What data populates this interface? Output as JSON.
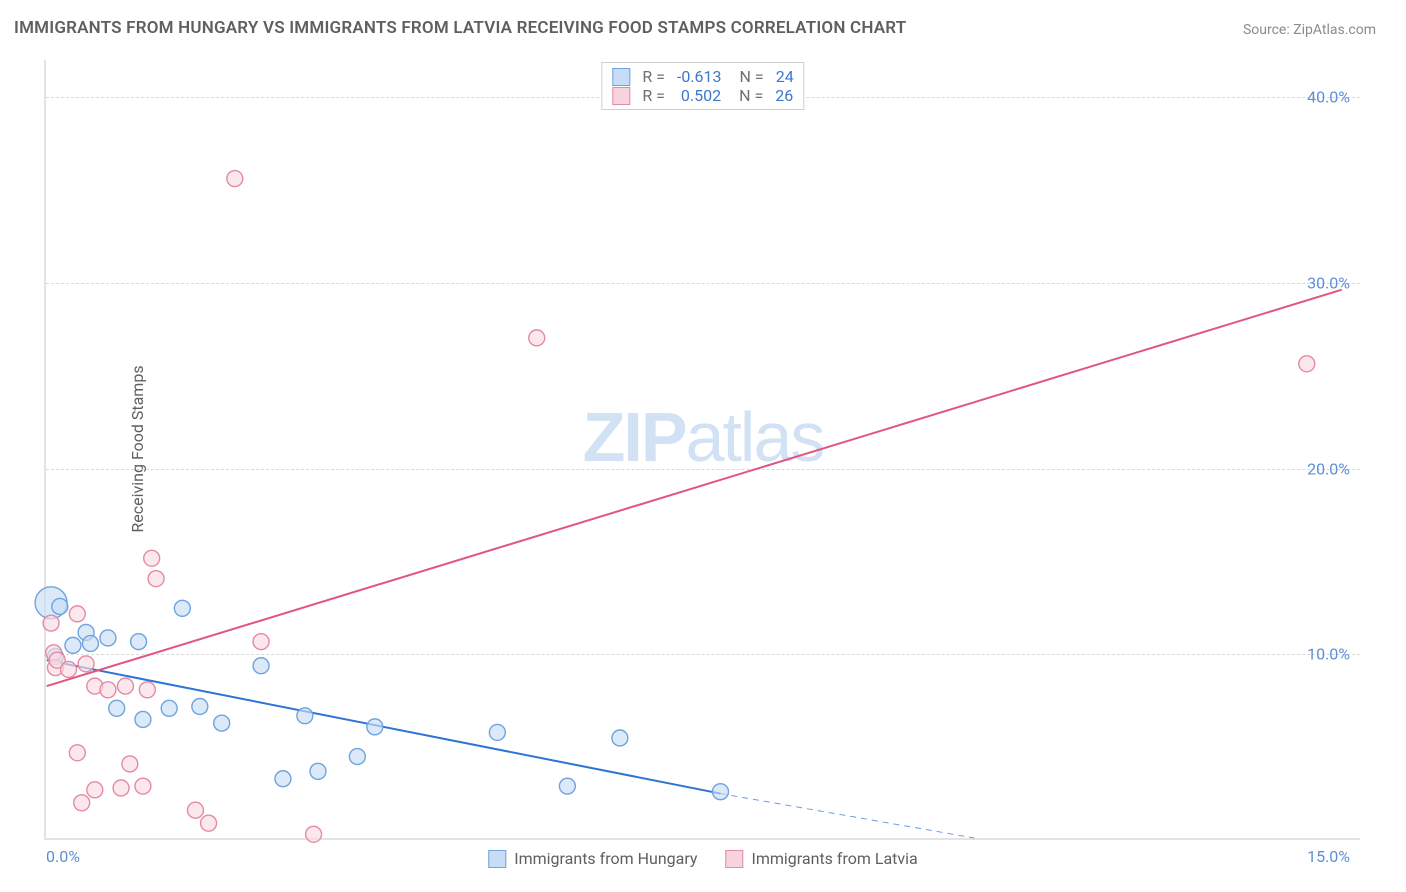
{
  "title": "IMMIGRANTS FROM HUNGARY VS IMMIGRANTS FROM LATVIA RECEIVING FOOD STAMPS CORRELATION CHART",
  "source": "Source: ZipAtlas.com",
  "ylabel": "Receiving Food Stamps",
  "watermark": {
    "zip": "ZIP",
    "atlas": "atlas"
  },
  "chart": {
    "type": "scatter-with-regression",
    "background_color": "#ffffff",
    "grid_color": "#d9d9d9",
    "xlim": [
      0,
      15
    ],
    "ylim": [
      0,
      42
    ],
    "xticks": [
      {
        "value": 0,
        "label": "0.0%"
      },
      {
        "value": 15,
        "label": "15.0%"
      }
    ],
    "yticks": [
      {
        "value": 10,
        "label": "10.0%"
      },
      {
        "value": 20,
        "label": "20.0%"
      },
      {
        "value": 30,
        "label": "30.0%"
      },
      {
        "value": 40,
        "label": "40.0%"
      }
    ],
    "series": [
      {
        "name": "Immigrants from Hungary",
        "fill_color": "#c7ddf5",
        "stroke_color": "#6fa3dd",
        "marker_radius": 8,
        "stats": {
          "R": "-0.613",
          "N": "24"
        },
        "points": [
          {
            "x": 0.05,
            "y": 12.7,
            "r": 16
          },
          {
            "x": 0.15,
            "y": 12.5
          },
          {
            "x": 0.1,
            "y": 9.8
          },
          {
            "x": 0.3,
            "y": 10.4
          },
          {
            "x": 0.45,
            "y": 11.1
          },
          {
            "x": 0.5,
            "y": 10.5
          },
          {
            "x": 0.7,
            "y": 10.8
          },
          {
            "x": 1.05,
            "y": 10.6
          },
          {
            "x": 0.8,
            "y": 7.0
          },
          {
            "x": 1.1,
            "y": 6.4
          },
          {
            "x": 1.4,
            "y": 7.0
          },
          {
            "x": 1.55,
            "y": 12.4
          },
          {
            "x": 1.75,
            "y": 7.1
          },
          {
            "x": 2.0,
            "y": 6.2
          },
          {
            "x": 2.45,
            "y": 9.3
          },
          {
            "x": 2.7,
            "y": 3.2
          },
          {
            "x": 2.95,
            "y": 6.6
          },
          {
            "x": 3.1,
            "y": 3.6
          },
          {
            "x": 3.55,
            "y": 4.4
          },
          {
            "x": 3.75,
            "y": 6.0
          },
          {
            "x": 5.15,
            "y": 5.7
          },
          {
            "x": 5.95,
            "y": 2.8
          },
          {
            "x": 6.55,
            "y": 5.4
          },
          {
            "x": 7.7,
            "y": 2.5
          }
        ],
        "regression": {
          "x1": 0.0,
          "y1": 9.6,
          "x2": 7.7,
          "y2": 2.4,
          "color": "#2d74d6",
          "width": 2,
          "extrap": {
            "x2": 10.6,
            "y2": 0.0,
            "dash": "6 5"
          }
        }
      },
      {
        "name": "Immigrants from Latvia",
        "fill_color": "#f9dbe3",
        "stroke_color": "#e58aa3",
        "marker_radius": 8,
        "stats": {
          "R": "0.502",
          "N": "26"
        },
        "points": [
          {
            "x": 0.05,
            "y": 11.6
          },
          {
            "x": 0.08,
            "y": 10.0
          },
          {
            "x": 0.1,
            "y": 9.2
          },
          {
            "x": 0.12,
            "y": 9.6
          },
          {
            "x": 0.25,
            "y": 9.1
          },
          {
            "x": 0.35,
            "y": 12.1
          },
          {
            "x": 0.45,
            "y": 9.4
          },
          {
            "x": 0.55,
            "y": 8.2
          },
          {
            "x": 0.7,
            "y": 8.0
          },
          {
            "x": 0.9,
            "y": 8.2
          },
          {
            "x": 1.15,
            "y": 8.0
          },
          {
            "x": 0.35,
            "y": 4.6
          },
          {
            "x": 0.55,
            "y": 2.6
          },
          {
            "x": 0.4,
            "y": 1.9
          },
          {
            "x": 0.85,
            "y": 2.7
          },
          {
            "x": 0.95,
            "y": 4.0
          },
          {
            "x": 1.1,
            "y": 2.8
          },
          {
            "x": 1.2,
            "y": 15.1
          },
          {
            "x": 1.25,
            "y": 14.0
          },
          {
            "x": 1.7,
            "y": 1.5
          },
          {
            "x": 1.85,
            "y": 0.8
          },
          {
            "x": 2.15,
            "y": 35.6
          },
          {
            "x": 2.45,
            "y": 10.6
          },
          {
            "x": 3.05,
            "y": 0.2
          },
          {
            "x": 5.6,
            "y": 27.0
          },
          {
            "x": 14.4,
            "y": 25.6
          }
        ],
        "regression": {
          "x1": 0.0,
          "y1": 8.2,
          "x2": 14.8,
          "y2": 29.6,
          "color": "#e0567f",
          "width": 2
        }
      }
    ]
  },
  "stats_legend_labels": {
    "R": "R =",
    "N": "N ="
  },
  "bottom_legend": [
    {
      "label": "Immigrants from Hungary",
      "swatch": "blue"
    },
    {
      "label": "Immigrants from Latvia",
      "swatch": "pink"
    }
  ]
}
